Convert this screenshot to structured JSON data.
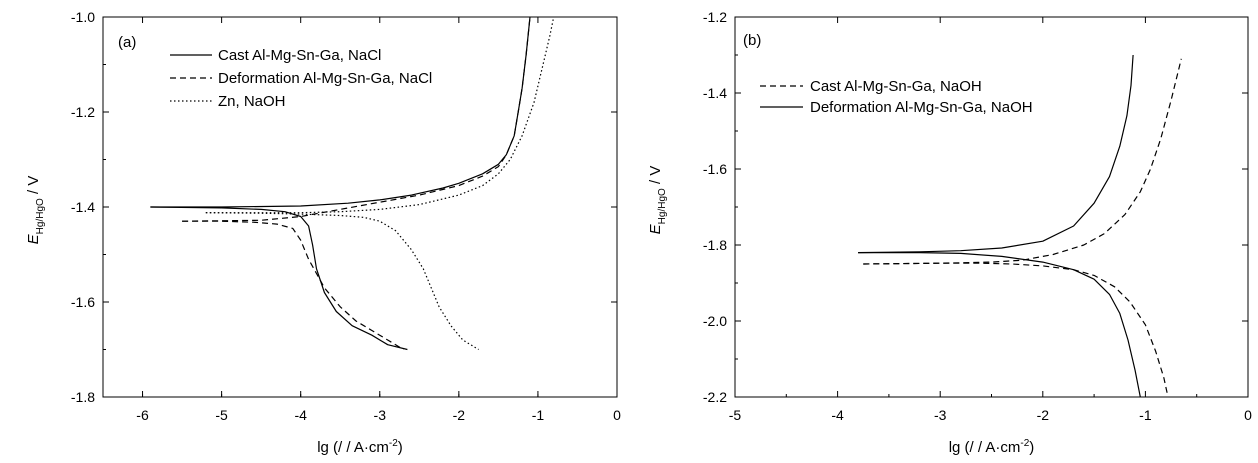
{
  "chart_data": [
    {
      "type": "line",
      "panel_label": "(a)",
      "xlabel": "lg (/ / A·cm",
      "xlabel_sup": "-2",
      "xlabel_end": ")",
      "ylabel_main": "E",
      "ylabel_sub": "Hg/HgO",
      "ylabel_unit": " / V",
      "xlim": [
        -6.5,
        0
      ],
      "ylim": [
        -1.8,
        -1.0
      ],
      "xticks": [
        -6,
        -5,
        -4,
        -3,
        -2,
        -1,
        0
      ],
      "xtick_labels": [
        "-6",
        "-5",
        "-4",
        "-3",
        "-2",
        "-1",
        "0"
      ],
      "yticks": [
        -1.8,
        -1.6,
        -1.4,
        -1.2,
        -1.0
      ],
      "ytick_labels": [
        "-1.8",
        "-1.6",
        "-1.4",
        "-1.2",
        "-1.0"
      ],
      "legend_position": "top-left",
      "series": [
        {
          "name": "Cast Al-Mg-Sn-Ga, NaCl",
          "style": "solid",
          "segments": [
            [
              [
                -5.9,
                -1.4
              ],
              [
                -5.0,
                -1.4
              ],
              [
                -4.0,
                -1.398
              ],
              [
                -3.4,
                -1.392
              ],
              [
                -3.0,
                -1.385
              ],
              [
                -2.6,
                -1.375
              ],
              [
                -2.2,
                -1.36
              ],
              [
                -2.0,
                -1.35
              ],
              [
                -1.7,
                -1.33
              ],
              [
                -1.5,
                -1.31
              ],
              [
                -1.4,
                -1.29
              ],
              [
                -1.3,
                -1.25
              ],
              [
                -1.25,
                -1.2
              ],
              [
                -1.2,
                -1.15
              ],
              [
                -1.15,
                -1.08
              ],
              [
                -1.1,
                -1.0
              ]
            ],
            [
              [
                -5.9,
                -1.4
              ],
              [
                -5.0,
                -1.402
              ],
              [
                -4.5,
                -1.405
              ],
              [
                -4.2,
                -1.41
              ],
              [
                -4.0,
                -1.42
              ],
              [
                -3.9,
                -1.44
              ],
              [
                -3.85,
                -1.48
              ],
              [
                -3.8,
                -1.53
              ],
              [
                -3.7,
                -1.58
              ],
              [
                -3.55,
                -1.62
              ],
              [
                -3.35,
                -1.65
              ],
              [
                -3.1,
                -1.67
              ],
              [
                -2.9,
                -1.69
              ],
              [
                -2.65,
                -1.7
              ]
            ]
          ]
        },
        {
          "name": "Deformation Al-Mg-Sn-Ga, NaCl",
          "style": "dashed",
          "segments": [
            [
              [
                -5.5,
                -1.43
              ],
              [
                -4.5,
                -1.428
              ],
              [
                -4.0,
                -1.42
              ],
              [
                -3.5,
                -1.405
              ],
              [
                -3.0,
                -1.39
              ],
              [
                -2.5,
                -1.375
              ],
              [
                -2.0,
                -1.355
              ],
              [
                -1.7,
                -1.335
              ],
              [
                -1.5,
                -1.315
              ],
              [
                -1.4,
                -1.29
              ],
              [
                -1.3,
                -1.25
              ],
              [
                -1.25,
                -1.2
              ],
              [
                -1.2,
                -1.15
              ],
              [
                -1.15,
                -1.08
              ],
              [
                -1.1,
                -1.0
              ]
            ],
            [
              [
                -5.5,
                -1.43
              ],
              [
                -5.0,
                -1.43
              ],
              [
                -4.6,
                -1.432
              ],
              [
                -4.3,
                -1.436
              ],
              [
                -4.1,
                -1.445
              ],
              [
                -4.0,
                -1.47
              ],
              [
                -3.9,
                -1.51
              ],
              [
                -3.8,
                -1.54
              ],
              [
                -3.7,
                -1.57
              ],
              [
                -3.5,
                -1.61
              ],
              [
                -3.3,
                -1.64
              ],
              [
                -3.1,
                -1.66
              ],
              [
                -2.9,
                -1.68
              ],
              [
                -2.7,
                -1.7
              ]
            ]
          ]
        },
        {
          "name": "Zn, NaOH",
          "style": "dotted",
          "segments": [
            [
              [
                -5.2,
                -1.412
              ],
              [
                -4.5,
                -1.412
              ],
              [
                -4.0,
                -1.412
              ],
              [
                -3.5,
                -1.41
              ],
              [
                -3.0,
                -1.405
              ],
              [
                -2.5,
                -1.395
              ],
              [
                -2.0,
                -1.375
              ],
              [
                -1.7,
                -1.355
              ],
              [
                -1.5,
                -1.33
              ],
              [
                -1.35,
                -1.3
              ],
              [
                -1.2,
                -1.25
              ],
              [
                -1.05,
                -1.18
              ],
              [
                -0.95,
                -1.11
              ],
              [
                -0.85,
                -1.04
              ],
              [
                -0.8,
                -1.0
              ]
            ],
            [
              [
                -5.2,
                -1.412
              ],
              [
                -4.5,
                -1.413
              ],
              [
                -4.0,
                -1.415
              ],
              [
                -3.5,
                -1.418
              ],
              [
                -3.2,
                -1.422
              ],
              [
                -3.0,
                -1.43
              ],
              [
                -2.8,
                -1.45
              ],
              [
                -2.6,
                -1.49
              ],
              [
                -2.45,
                -1.53
              ],
              [
                -2.35,
                -1.57
              ],
              [
                -2.25,
                -1.61
              ],
              [
                -2.1,
                -1.65
              ],
              [
                -1.95,
                -1.68
              ],
              [
                -1.75,
                -1.7
              ]
            ]
          ]
        }
      ]
    },
    {
      "type": "line",
      "panel_label": "(b)",
      "xlabel": "lg (/ / A·cm",
      "xlabel_sup": "-2",
      "xlabel_end": ")",
      "ylabel_main": "E",
      "ylabel_sub": "Hg/HgO",
      "ylabel_unit": " / V",
      "xlim": [
        -5,
        0
      ],
      "ylim": [
        -2.2,
        -1.2
      ],
      "xticks": [
        -5,
        -4,
        -3,
        -2,
        -1,
        0
      ],
      "xtick_labels": [
        "-5",
        "-4",
        "-3",
        "-2",
        "-1",
        "0"
      ],
      "yticks": [
        -2.2,
        -2.0,
        -1.8,
        -1.6,
        -1.4,
        -1.2
      ],
      "ytick_labels": [
        "-2.2",
        "-2.0",
        "-1.8",
        "-1.6",
        "-1.4",
        "-1.2"
      ],
      "legend_position": "top-left",
      "series": [
        {
          "name": "Cast Al-Mg-Sn-Ga, NaOH",
          "style": "dashed",
          "segments": [
            [
              [
                -3.75,
                -1.85
              ],
              [
                -3.0,
                -1.848
              ],
              [
                -2.5,
                -1.845
              ],
              [
                -2.2,
                -1.84
              ],
              [
                -1.9,
                -1.825
              ],
              [
                -1.6,
                -1.8
              ],
              [
                -1.4,
                -1.77
              ],
              [
                -1.2,
                -1.72
              ],
              [
                -1.05,
                -1.66
              ],
              [
                -0.95,
                -1.6
              ],
              [
                -0.85,
                -1.52
              ],
              [
                -0.75,
                -1.42
              ],
              [
                -0.65,
                -1.31
              ]
            ],
            [
              [
                -3.75,
                -1.85
              ],
              [
                -3.0,
                -1.848
              ],
              [
                -2.6,
                -1.848
              ],
              [
                -2.3,
                -1.85
              ],
              [
                -2.0,
                -1.855
              ],
              [
                -1.7,
                -1.865
              ],
              [
                -1.5,
                -1.88
              ],
              [
                -1.3,
                -1.91
              ],
              [
                -1.15,
                -1.95
              ],
              [
                -1.0,
                -2.01
              ],
              [
                -0.9,
                -2.08
              ],
              [
                -0.82,
                -2.15
              ],
              [
                -0.78,
                -2.2
              ]
            ]
          ]
        },
        {
          "name": "Deformation Al-Mg-Sn-Ga, NaOH",
          "style": "solid",
          "segments": [
            [
              [
                -3.8,
                -1.82
              ],
              [
                -3.2,
                -1.818
              ],
              [
                -2.8,
                -1.815
              ],
              [
                -2.4,
                -1.808
              ],
              [
                -2.0,
                -1.79
              ],
              [
                -1.7,
                -1.75
              ],
              [
                -1.5,
                -1.69
              ],
              [
                -1.35,
                -1.62
              ],
              [
                -1.25,
                -1.54
              ],
              [
                -1.18,
                -1.46
              ],
              [
                -1.14,
                -1.38
              ],
              [
                -1.12,
                -1.3
              ]
            ],
            [
              [
                -3.8,
                -1.82
              ],
              [
                -3.2,
                -1.82
              ],
              [
                -2.8,
                -1.822
              ],
              [
                -2.4,
                -1.83
              ],
              [
                -2.0,
                -1.845
              ],
              [
                -1.7,
                -1.865
              ],
              [
                -1.5,
                -1.89
              ],
              [
                -1.35,
                -1.93
              ],
              [
                -1.25,
                -1.98
              ],
              [
                -1.17,
                -2.05
              ],
              [
                -1.1,
                -2.13
              ],
              [
                -1.05,
                -2.2
              ]
            ]
          ]
        }
      ]
    }
  ]
}
